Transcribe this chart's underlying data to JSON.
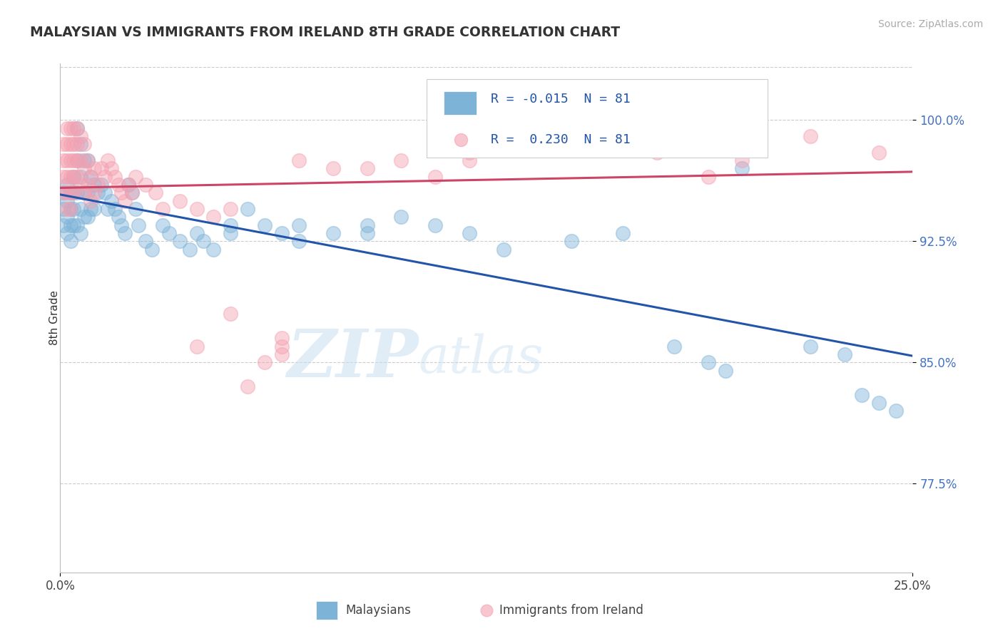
{
  "title": "MALAYSIAN VS IMMIGRANTS FROM IRELAND 8TH GRADE CORRELATION CHART",
  "source": "Source: ZipAtlas.com",
  "ylabel": "8th Grade",
  "ytick_labels": [
    "77.5%",
    "85.0%",
    "92.5%",
    "100.0%"
  ],
  "ytick_values": [
    0.775,
    0.85,
    0.925,
    1.0
  ],
  "xlim": [
    0.0,
    0.25
  ],
  "ylim": [
    0.72,
    1.035
  ],
  "legend_r_blue": "-0.015",
  "legend_n_blue": "81",
  "legend_r_pink": "0.230",
  "legend_n_pink": "81",
  "legend_label_blue": "Malaysians",
  "legend_label_pink": "Immigrants from Ireland",
  "blue_color": "#7eb3d8",
  "pink_color": "#f4a0b0",
  "blue_line_color": "#2255aa",
  "pink_line_color": "#cc4466",
  "watermark_zip": "ZIP",
  "watermark_atlas": "atlas",
  "blue_points": [
    [
      0.001,
      0.955
    ],
    [
      0.001,
      0.945
    ],
    [
      0.001,
      0.935
    ],
    [
      0.002,
      0.96
    ],
    [
      0.002,
      0.95
    ],
    [
      0.002,
      0.94
    ],
    [
      0.002,
      0.93
    ],
    [
      0.003,
      0.955
    ],
    [
      0.003,
      0.945
    ],
    [
      0.003,
      0.935
    ],
    [
      0.003,
      0.925
    ],
    [
      0.004,
      0.965
    ],
    [
      0.004,
      0.955
    ],
    [
      0.004,
      0.945
    ],
    [
      0.004,
      0.935
    ],
    [
      0.005,
      0.995
    ],
    [
      0.005,
      0.975
    ],
    [
      0.005,
      0.955
    ],
    [
      0.005,
      0.935
    ],
    [
      0.006,
      0.985
    ],
    [
      0.006,
      0.965
    ],
    [
      0.006,
      0.945
    ],
    [
      0.006,
      0.93
    ],
    [
      0.007,
      0.975
    ],
    [
      0.007,
      0.955
    ],
    [
      0.007,
      0.94
    ],
    [
      0.008,
      0.975
    ],
    [
      0.008,
      0.955
    ],
    [
      0.008,
      0.94
    ],
    [
      0.009,
      0.965
    ],
    [
      0.009,
      0.945
    ],
    [
      0.01,
      0.96
    ],
    [
      0.01,
      0.945
    ],
    [
      0.011,
      0.955
    ],
    [
      0.012,
      0.96
    ],
    [
      0.013,
      0.955
    ],
    [
      0.014,
      0.945
    ],
    [
      0.015,
      0.95
    ],
    [
      0.016,
      0.945
    ],
    [
      0.017,
      0.94
    ],
    [
      0.018,
      0.935
    ],
    [
      0.019,
      0.93
    ],
    [
      0.02,
      0.96
    ],
    [
      0.021,
      0.955
    ],
    [
      0.022,
      0.945
    ],
    [
      0.023,
      0.935
    ],
    [
      0.025,
      0.925
    ],
    [
      0.027,
      0.92
    ],
    [
      0.03,
      0.935
    ],
    [
      0.032,
      0.93
    ],
    [
      0.035,
      0.925
    ],
    [
      0.038,
      0.92
    ],
    [
      0.04,
      0.93
    ],
    [
      0.042,
      0.925
    ],
    [
      0.045,
      0.92
    ],
    [
      0.05,
      0.935
    ],
    [
      0.055,
      0.945
    ],
    [
      0.06,
      0.935
    ],
    [
      0.065,
      0.93
    ],
    [
      0.07,
      0.925
    ],
    [
      0.08,
      0.93
    ],
    [
      0.09,
      0.93
    ],
    [
      0.1,
      0.94
    ],
    [
      0.11,
      0.935
    ],
    [
      0.12,
      0.93
    ],
    [
      0.13,
      0.92
    ],
    [
      0.15,
      0.925
    ],
    [
      0.165,
      0.93
    ],
    [
      0.18,
      0.86
    ],
    [
      0.19,
      0.85
    ],
    [
      0.195,
      0.845
    ],
    [
      0.2,
      0.97
    ],
    [
      0.22,
      0.86
    ],
    [
      0.23,
      0.855
    ],
    [
      0.235,
      0.83
    ],
    [
      0.24,
      0.825
    ],
    [
      0.245,
      0.82
    ],
    [
      0.05,
      0.93
    ],
    [
      0.07,
      0.935
    ],
    [
      0.09,
      0.935
    ]
  ],
  "pink_points": [
    [
      0.001,
      0.985
    ],
    [
      0.001,
      0.975
    ],
    [
      0.001,
      0.965
    ],
    [
      0.001,
      0.955
    ],
    [
      0.002,
      0.995
    ],
    [
      0.002,
      0.985
    ],
    [
      0.002,
      0.975
    ],
    [
      0.002,
      0.965
    ],
    [
      0.002,
      0.955
    ],
    [
      0.002,
      0.945
    ],
    [
      0.003,
      0.995
    ],
    [
      0.003,
      0.985
    ],
    [
      0.003,
      0.975
    ],
    [
      0.003,
      0.965
    ],
    [
      0.003,
      0.955
    ],
    [
      0.003,
      0.945
    ],
    [
      0.004,
      0.995
    ],
    [
      0.004,
      0.985
    ],
    [
      0.004,
      0.975
    ],
    [
      0.004,
      0.965
    ],
    [
      0.004,
      0.955
    ],
    [
      0.005,
      0.995
    ],
    [
      0.005,
      0.985
    ],
    [
      0.005,
      0.975
    ],
    [
      0.005,
      0.965
    ],
    [
      0.006,
      0.99
    ],
    [
      0.006,
      0.975
    ],
    [
      0.006,
      0.96
    ],
    [
      0.007,
      0.985
    ],
    [
      0.007,
      0.97
    ],
    [
      0.007,
      0.955
    ],
    [
      0.008,
      0.975
    ],
    [
      0.008,
      0.96
    ],
    [
      0.009,
      0.965
    ],
    [
      0.009,
      0.95
    ],
    [
      0.01,
      0.97
    ],
    [
      0.01,
      0.955
    ],
    [
      0.011,
      0.96
    ],
    [
      0.012,
      0.97
    ],
    [
      0.013,
      0.965
    ],
    [
      0.014,
      0.975
    ],
    [
      0.015,
      0.97
    ],
    [
      0.016,
      0.965
    ],
    [
      0.017,
      0.96
    ],
    [
      0.018,
      0.955
    ],
    [
      0.019,
      0.95
    ],
    [
      0.02,
      0.96
    ],
    [
      0.021,
      0.955
    ],
    [
      0.022,
      0.965
    ],
    [
      0.025,
      0.96
    ],
    [
      0.028,
      0.955
    ],
    [
      0.03,
      0.945
    ],
    [
      0.035,
      0.95
    ],
    [
      0.04,
      0.945
    ],
    [
      0.045,
      0.94
    ],
    [
      0.05,
      0.945
    ],
    [
      0.055,
      0.835
    ],
    [
      0.06,
      0.85
    ],
    [
      0.065,
      0.86
    ],
    [
      0.07,
      0.975
    ],
    [
      0.08,
      0.97
    ],
    [
      0.09,
      0.97
    ],
    [
      0.1,
      0.975
    ],
    [
      0.11,
      0.965
    ],
    [
      0.12,
      0.98
    ],
    [
      0.13,
      0.985
    ],
    [
      0.14,
      0.99
    ],
    [
      0.15,
      0.985
    ],
    [
      0.16,
      0.995
    ],
    [
      0.175,
      0.98
    ],
    [
      0.19,
      0.965
    ],
    [
      0.2,
      0.975
    ],
    [
      0.04,
      0.86
    ],
    [
      0.065,
      0.865
    ],
    [
      0.12,
      0.975
    ],
    [
      0.15,
      0.99
    ],
    [
      0.17,
      0.985
    ],
    [
      0.22,
      0.99
    ],
    [
      0.24,
      0.98
    ],
    [
      0.065,
      0.855
    ],
    [
      0.05,
      0.88
    ]
  ]
}
